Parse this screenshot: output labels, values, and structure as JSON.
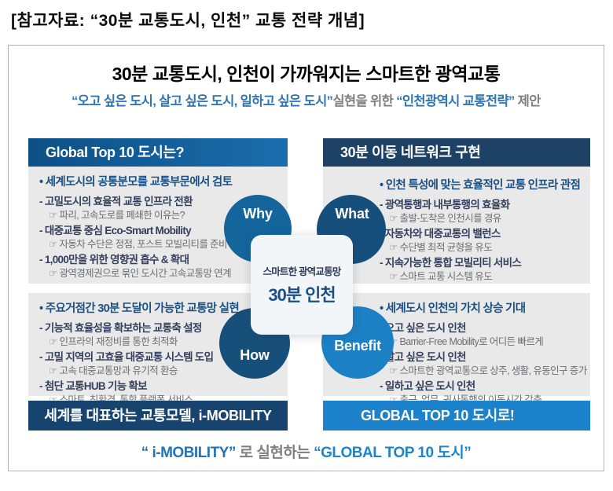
{
  "page_title": "[참고자료:  “30분 교통도시, 인천”  교통 전략 개념]",
  "diagram": {
    "title": "30분 교통도시, 인천이 가까워지는 스마트한 광역교통",
    "subtitle": {
      "quote_cities": "“오고 싶은 도시, 살고 싶은 도시, 일하고 싶은 도시”",
      "middle": "실현을 위한 ",
      "quote_strategy": "“인천광역시 교통전략”",
      "suffix": " 제안"
    }
  },
  "quadrants": {
    "top_left": {
      "header": "Global Top 10 도시는?",
      "bullet": "• 세계도시의 공통분모를  교통부문에서 검토",
      "items": [
        {
          "head": "- 고밀도시의 효율적 교통 인프라 전환",
          "sub": "☞ 파리, 고속도로를 폐쇄한 이유는?"
        },
        {
          "head": "- 대중교통 중심 Eco-Smart Mobility",
          "sub": "☞ 자동차 수단은 정점, 포스트 모빌리티를 준비"
        },
        {
          "head": "- 1,000만을 위한 영향권 흡수 & 확대",
          "sub": "☞ 광역경제권으로 묶인 도시간 고속교통망 연계"
        }
      ]
    },
    "top_right": {
      "header": "30분 이동 네트워크 구현",
      "bullet": "• 인천 특성에 맞는 효율적인 교통 인프라 관점",
      "items": [
        {
          "head": "- 광역통행과 내부통행의 효율화",
          "sub": "☞ 출발-도착은 인천시를 경유"
        },
        {
          "head": "- 자동차와 대중교통의 밸런스",
          "sub": "☞ 수단별 최적 균형을 유도"
        },
        {
          "head": "- 지속가능한 통합 모빌리티 서비스",
          "sub": "☞ 스마트 교통 시스템 유도"
        }
      ]
    },
    "bottom_left": {
      "bullet": "• 주요거점간 30분 도달이 가능한 교통망 실현",
      "items": [
        {
          "head": "- 기능적 효율성을 확보하는 교통축 설정",
          "sub": "☞ 인프라의 재정비를 통한 최적화"
        },
        {
          "head": "- 고밀 지역의 고효율 대중교통 시스템 도입",
          "sub": "☞ 고속 대중교통망과 유기적 환승"
        },
        {
          "head": "- 첨단 교통HUB 기능 확보",
          "sub": "☞ 스마트, 친환경, 통합 플랫폼 서비스"
        }
      ],
      "banner": "세계를 대표하는 교통모델, i-MOBILITY"
    },
    "bottom_right": {
      "bullet": "• 세계도시 인천의 가치 상승 기대",
      "items": [
        {
          "head": "- 오고 싶은 도시 인천",
          "sub": "☞ Barrier-Free Mobility로  어디든 빠르게"
        },
        {
          "head": "- 살고 싶은 도시 인천",
          "sub": "☞ 스마트한 광역교통으로 상주, 생활, 유동인구 증가"
        },
        {
          "head": "- 일하고 싶은 도시 인천",
          "sub": "☞ 출근, 업무, 귀사통행의 이동시간 감축"
        }
      ],
      "banner": "GLOBAL TOP 10 도시로!"
    }
  },
  "center": {
    "circles": {
      "why": "Why",
      "what": "What",
      "how": "How",
      "benefit": "Benefit"
    },
    "caption": "스마트한  광역교통망",
    "title": "30분 인천"
  },
  "footer": {
    "imobility": "“ i-MOBILITY”",
    "middle": " 로 실현하는 ",
    "global": "“GLOBAL TOP 10 도시”"
  },
  "colors": {
    "accent_blue": "#2d74b5",
    "bright_blue": "#1b82cb",
    "navy_banner": "#17446e",
    "header_blue_left": "#11578f",
    "header_navy_right": "#1e4265",
    "circle_why": "#14659c",
    "circle_what": "#174f7c",
    "circle_how": "#174f7b",
    "circle_benefit": "#1c80c5",
    "panel_gray": "#e9e9e9",
    "bullet_navy": "#1a5084",
    "item_dark": "#333f5c",
    "sub_gray": "#6d6e71"
  }
}
